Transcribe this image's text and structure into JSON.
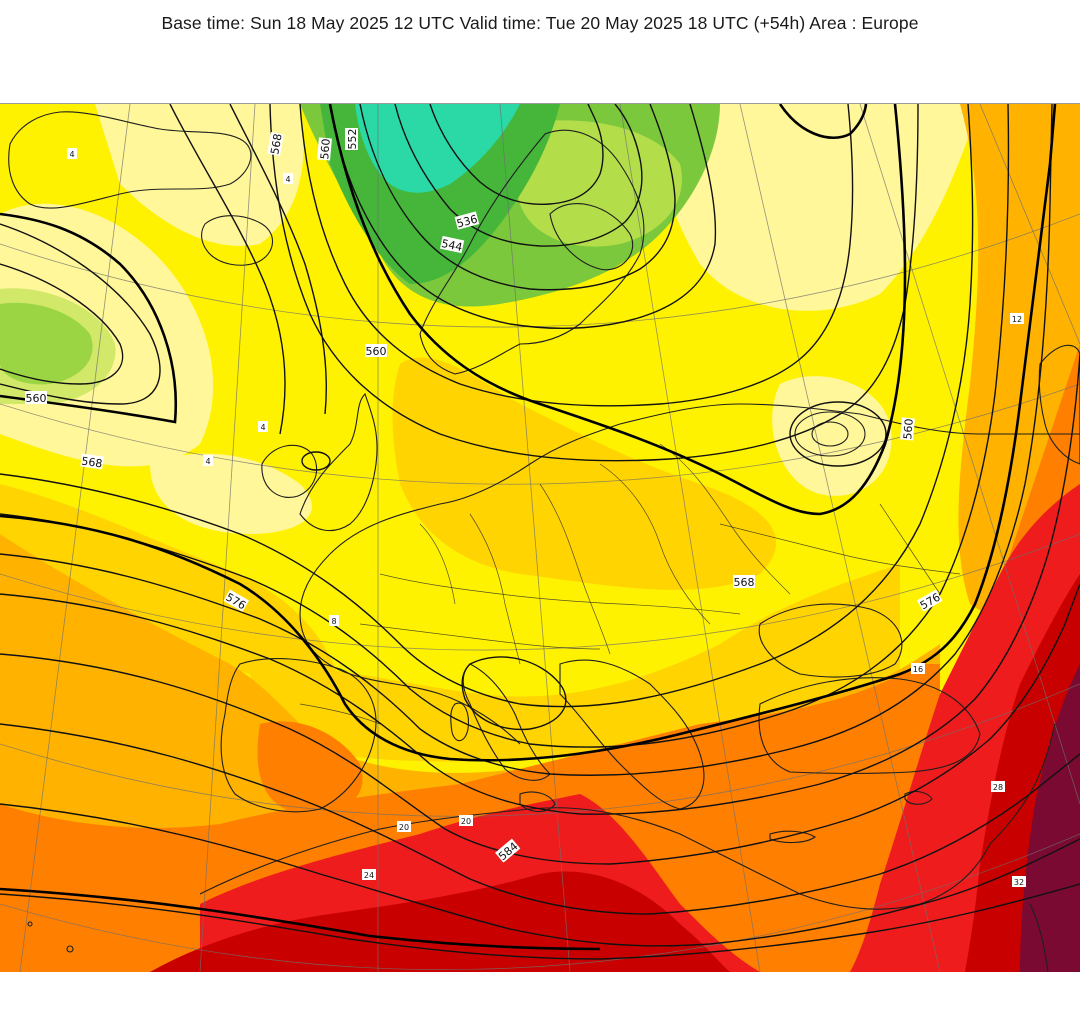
{
  "header": {
    "title": "Base time: Sun 18 May 2025 12 UTC Valid time: Tue 20 May 2025 18 UTC (+54h) Area : Europe"
  },
  "palette": {
    "teal": "#2ad9a6",
    "green_dark": "#46b63a",
    "green": "#7cc83c",
    "green_light": "#b3de4a",
    "yellow_pale": "#fff799",
    "yellow": "#fff200",
    "yellow_deep": "#ffd400",
    "orange_light": "#ffb300",
    "orange": "#ff7f00",
    "red": "#ee1c1c",
    "red_dark": "#c80000",
    "maroon": "#7a0a32",
    "contour": "#111111",
    "coast": "#1f1f1f",
    "grid": "#6f6f6f"
  },
  "map": {
    "contour_labels": [
      {
        "id": "c568-ne-atl",
        "text": "568"
      },
      {
        "id": "c560-nw",
        "text": "560"
      },
      {
        "id": "c552-norway",
        "text": "552"
      },
      {
        "id": "c560-norway",
        "text": "560"
      },
      {
        "id": "c536",
        "text": "536"
      },
      {
        "id": "c544",
        "text": "544"
      },
      {
        "id": "c560-west",
        "text": "560"
      },
      {
        "id": "c568-west",
        "text": "568"
      },
      {
        "id": "c576-atl",
        "text": "576"
      },
      {
        "id": "c568-balkans",
        "text": "568"
      },
      {
        "id": "c576-turkey",
        "text": "576"
      },
      {
        "id": "c560-russia",
        "text": "560"
      },
      {
        "id": "c584-africa",
        "text": "584"
      }
    ],
    "small_labels": [
      {
        "id": "s4a",
        "text": "4"
      },
      {
        "id": "s4b",
        "text": "4"
      },
      {
        "id": "s4c",
        "text": "4"
      },
      {
        "id": "s4d",
        "text": "4"
      },
      {
        "id": "s8a",
        "text": "8"
      },
      {
        "id": "s12",
        "text": "12"
      },
      {
        "id": "s16",
        "text": "16"
      },
      {
        "id": "s20a",
        "text": "20"
      },
      {
        "id": "s20b",
        "text": "20"
      },
      {
        "id": "s24",
        "text": "24"
      },
      {
        "id": "s28",
        "text": "28"
      },
      {
        "id": "s32",
        "text": "32"
      }
    ]
  }
}
